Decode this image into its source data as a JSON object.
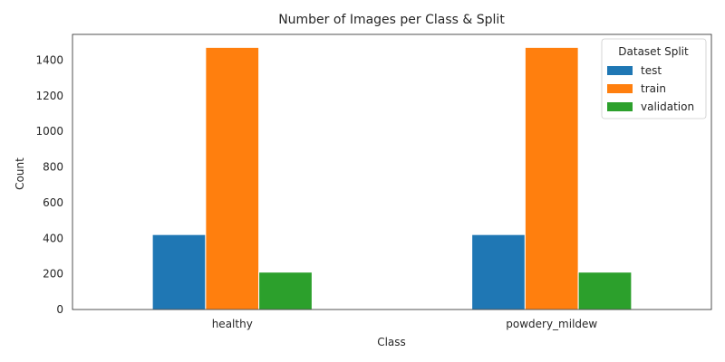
{
  "chart_data": {
    "type": "bar",
    "title": "Number of Images per Class & Split",
    "xlabel": "Class",
    "ylabel": "Count",
    "categories": [
      "healthy",
      "powdery_mildew"
    ],
    "series": [
      {
        "name": "test",
        "values": [
          421,
          421
        ],
        "color": "#1f77b4"
      },
      {
        "name": "train",
        "values": [
          1472,
          1472
        ],
        "color": "#ff7f0e"
      },
      {
        "name": "validation",
        "values": [
          210,
          210
        ],
        "color": "#2ca02c"
      }
    ],
    "ylim": [
      0,
      1545
    ],
    "yticks": [
      0,
      200,
      400,
      600,
      800,
      1000,
      1200,
      1400
    ],
    "grid": false,
    "legend": {
      "title": "Dataset Split",
      "placement": "top-right"
    }
  }
}
